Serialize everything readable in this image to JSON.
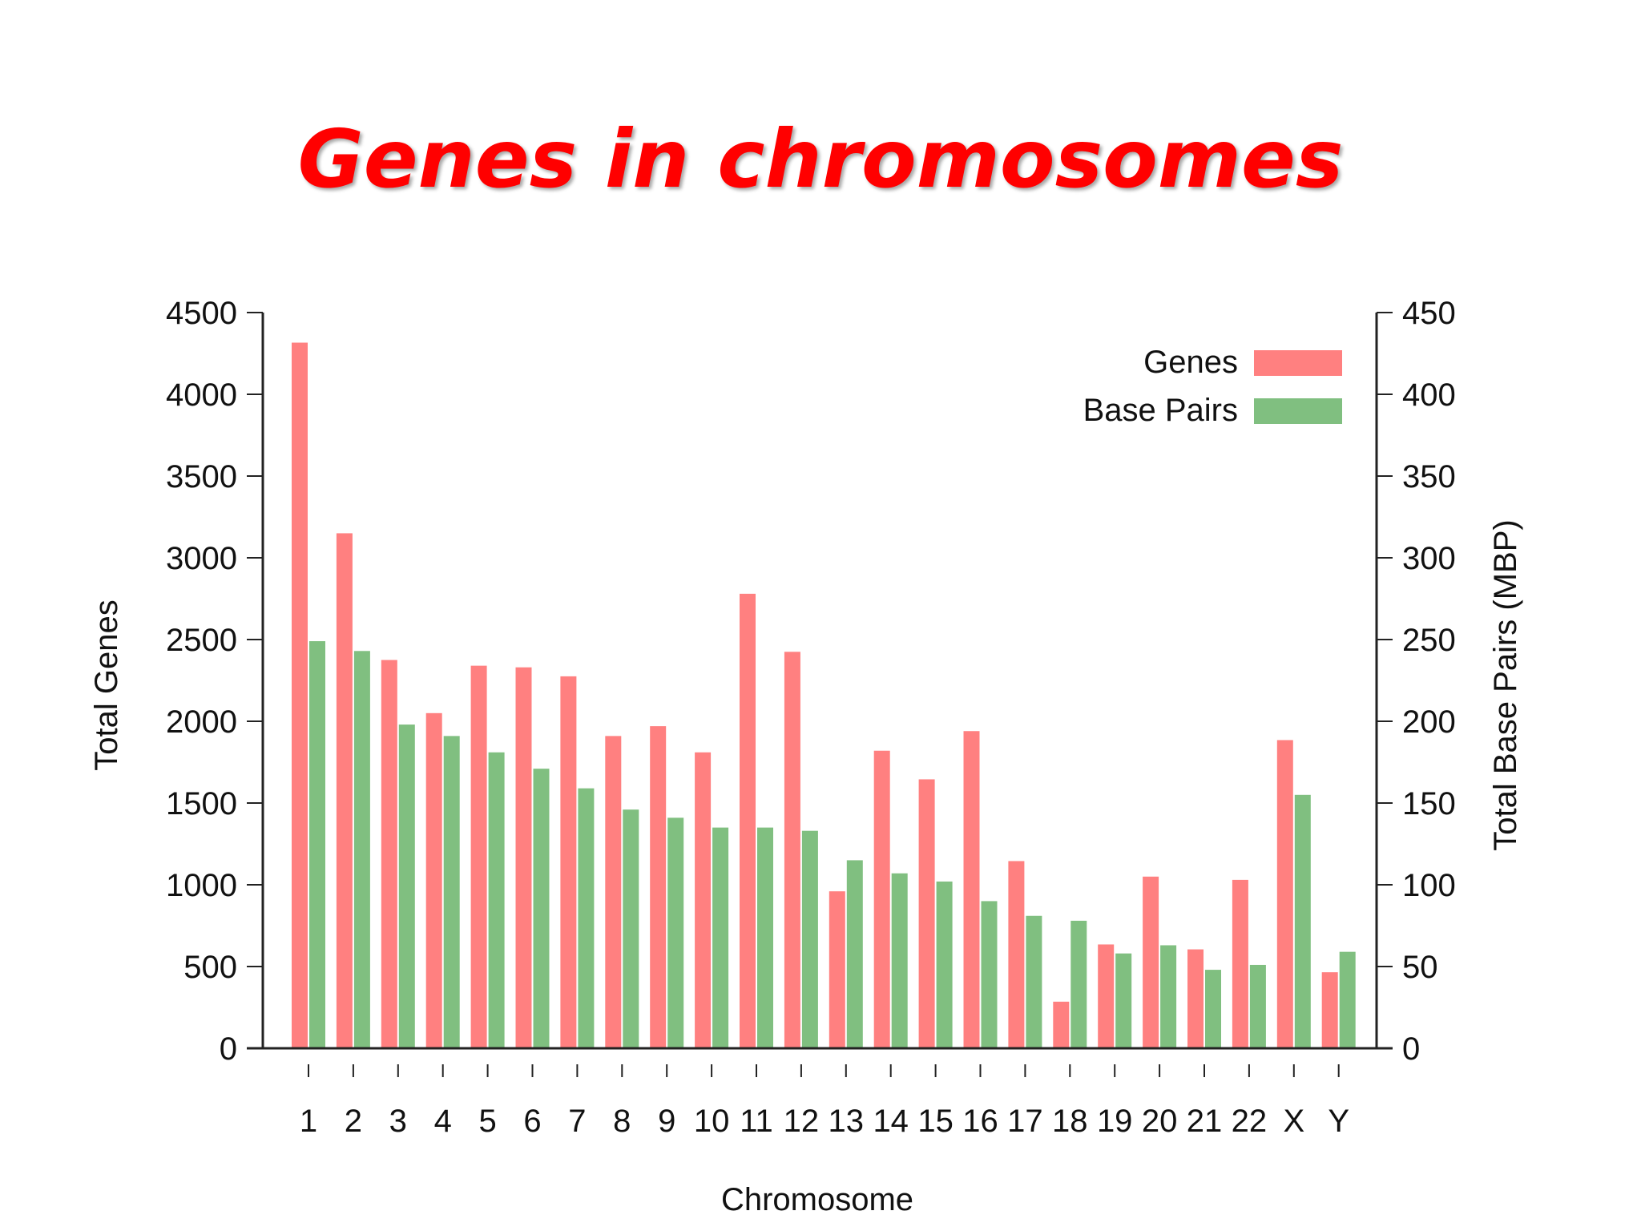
{
  "title": "Genes in chromosomes",
  "colors": {
    "genes": "#ff8080",
    "base_pairs": "#80bf80",
    "title": "#ff0000"
  },
  "chart_data": {
    "type": "bar",
    "categories": [
      "1",
      "2",
      "3",
      "4",
      "5",
      "6",
      "7",
      "8",
      "9",
      "10",
      "11",
      "12",
      "13",
      "14",
      "15",
      "16",
      "17",
      "18",
      "19",
      "20",
      "21",
      "22",
      "X",
      "Y"
    ],
    "series": [
      {
        "name": "Genes",
        "axis": "left",
        "values": [
          4316,
          3150,
          2375,
          2050,
          2340,
          2330,
          2275,
          1910,
          1970,
          1810,
          2780,
          2425,
          960,
          1820,
          1645,
          1940,
          1145,
          285,
          635,
          1050,
          605,
          1030,
          1885,
          465
        ]
      },
      {
        "name": "Base Pairs",
        "axis": "right",
        "values": [
          249,
          243,
          198,
          191,
          181,
          171,
          159,
          146,
          141,
          135,
          135,
          133,
          115,
          107,
          102,
          90,
          81,
          78,
          58,
          63,
          48,
          51,
          155,
          59
        ]
      }
    ],
    "xlabel": "Chromosome",
    "ylabel": "Total Genes",
    "y2label": "Total Base Pairs (MBP)",
    "ylim": [
      0,
      4500
    ],
    "y2lim": [
      0,
      450
    ],
    "yticks": [
      0,
      500,
      1000,
      1500,
      2000,
      2500,
      3000,
      3500,
      4000,
      4500
    ],
    "y2ticks": [
      0,
      50,
      100,
      150,
      200,
      250,
      300,
      350,
      400,
      450
    ],
    "legend": {
      "position": "top-right",
      "entries": [
        "Genes",
        "Base Pairs"
      ]
    },
    "grid": false
  }
}
